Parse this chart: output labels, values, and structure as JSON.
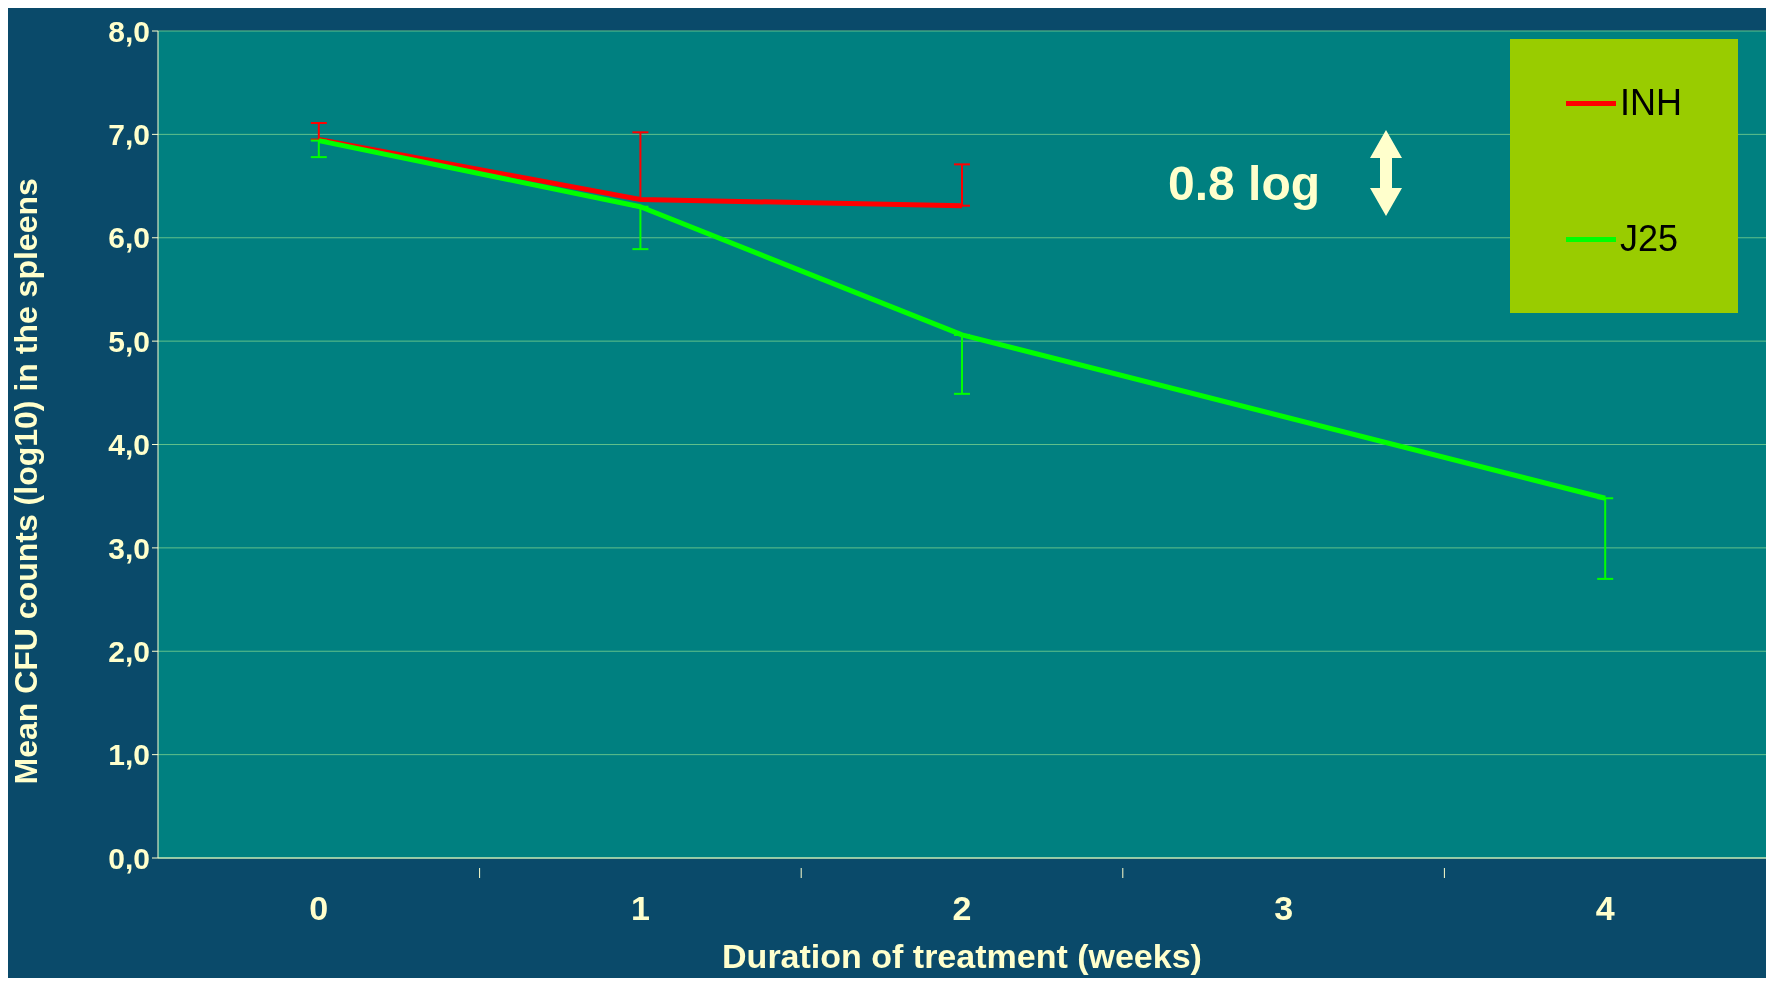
{
  "chart_data": {
    "type": "line",
    "xlabel": "Duration of treatment (weeks)",
    "ylabel": "Mean CFU counts (log10) in the spleens",
    "categories": [
      "0",
      "1",
      "2",
      "3",
      "4"
    ],
    "series": [
      {
        "name": "INH",
        "color": "#ff0000",
        "values": [
          6.95,
          6.37,
          6.31,
          null,
          null
        ],
        "errors": [
          [
            6.95,
            7.11
          ],
          [
            6.37,
            7.02
          ],
          [
            6.31,
            6.71
          ],
          null,
          null
        ]
      },
      {
        "name": "J25",
        "color": "#00ff00",
        "values": [
          6.94,
          6.3,
          5.06,
          null,
          3.48
        ],
        "errors": [
          [
            6.78,
            6.94
          ],
          [
            5.89,
            6.3
          ],
          [
            4.49,
            5.06
          ],
          null,
          [
            2.7,
            3.48
          ]
        ]
      }
    ],
    "ylim": [
      0,
      8
    ],
    "yticks": [
      {
        "value": 0,
        "label": "0,0"
      },
      {
        "value": 1,
        "label": "1,0"
      },
      {
        "value": 2,
        "label": "2,0"
      },
      {
        "value": 3,
        "label": "3,0"
      },
      {
        "value": 4,
        "label": "4,0"
      },
      {
        "value": 5,
        "label": "5,0"
      },
      {
        "value": 6,
        "label": "6,0"
      },
      {
        "value": 7,
        "label": "7,0"
      },
      {
        "value": 8,
        "label": "8,0"
      }
    ],
    "grid": "y",
    "legend": "top right",
    "marker": "none",
    "line_style": "solid",
    "annotations": [
      "0.8 log"
    ]
  }
}
